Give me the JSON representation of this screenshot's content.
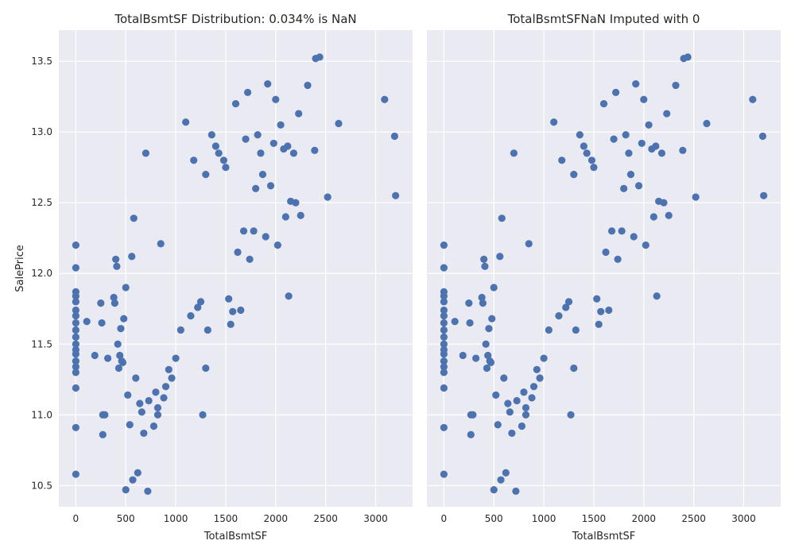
{
  "chart_data": [
    {
      "type": "scatter",
      "title": "TotalBsmtSF Distribution: 0.034% is NaN",
      "xlabel": "TotalBsmtSF",
      "ylabel": "SalePrice",
      "xlim": [
        -170,
        3370
      ],
      "ylim": [
        10.35,
        13.72
      ],
      "xticks": [
        0,
        500,
        1000,
        1500,
        2000,
        2500,
        3000
      ],
      "yticks": [
        10.5,
        11.0,
        11.5,
        12.0,
        12.5,
        13.0,
        13.5
      ],
      "ytick_labels": [
        "10.5",
        "11.0",
        "11.5",
        "12.0",
        "12.5",
        "13.0",
        "13.5"
      ],
      "grid": true,
      "background": "#eaeaf2",
      "marker_color": "#4c72b0"
    },
    {
      "type": "scatter",
      "title": "TotalBsmtSFNaN Imputed with 0",
      "xlabel": "TotalBsmtSF",
      "ylabel": "",
      "xlim": [
        -170,
        3370
      ],
      "ylim": [
        10.35,
        13.72
      ],
      "xticks": [
        0,
        500,
        1000,
        1500,
        2000,
        2500,
        3000
      ],
      "yticks": [
        10.5,
        11.0,
        11.5,
        12.0,
        12.5,
        13.0,
        13.5
      ],
      "ytick_labels": [],
      "grid": true,
      "background": "#eaeaf2",
      "marker_color": "#4c72b0"
    }
  ],
  "points": [
    [
      0,
      12.2
    ],
    [
      0,
      12.04
    ],
    [
      0,
      11.87
    ],
    [
      0,
      11.84
    ],
    [
      0,
      11.8
    ],
    [
      0,
      11.74
    ],
    [
      0,
      11.7
    ],
    [
      0,
      11.65
    ],
    [
      0,
      11.6
    ],
    [
      0,
      11.55
    ],
    [
      0,
      11.5
    ],
    [
      0,
      11.46
    ],
    [
      0,
      11.43
    ],
    [
      0,
      11.38
    ],
    [
      0,
      11.34
    ],
    [
      0,
      11.3
    ],
    [
      0,
      11.19
    ],
    [
      0,
      10.91
    ],
    [
      0,
      10.58
    ],
    [
      110,
      11.66
    ],
    [
      190,
      11.42
    ],
    [
      250,
      11.79
    ],
    [
      260,
      11.65
    ],
    [
      270,
      11.0
    ],
    [
      290,
      11.0
    ],
    [
      270,
      10.86
    ],
    [
      320,
      11.4
    ],
    [
      380,
      11.83
    ],
    [
      390,
      11.79
    ],
    [
      400,
      12.1
    ],
    [
      410,
      12.05
    ],
    [
      420,
      11.5
    ],
    [
      430,
      11.33
    ],
    [
      440,
      11.42
    ],
    [
      450,
      11.61
    ],
    [
      460,
      11.38
    ],
    [
      470,
      11.37
    ],
    [
      480,
      11.68
    ],
    [
      500,
      10.47
    ],
    [
      500,
      11.9
    ],
    [
      520,
      11.14
    ],
    [
      540,
      10.93
    ],
    [
      560,
      12.12
    ],
    [
      570,
      10.54
    ],
    [
      580,
      12.39
    ],
    [
      600,
      11.26
    ],
    [
      620,
      10.59
    ],
    [
      640,
      11.08
    ],
    [
      660,
      11.02
    ],
    [
      680,
      10.87
    ],
    [
      700,
      12.85
    ],
    [
      720,
      10.46
    ],
    [
      730,
      11.1
    ],
    [
      780,
      10.92
    ],
    [
      800,
      11.16
    ],
    [
      820,
      11.0
    ],
    [
      820,
      11.05
    ],
    [
      850,
      12.21
    ],
    [
      880,
      11.12
    ],
    [
      900,
      11.2
    ],
    [
      930,
      11.32
    ],
    [
      960,
      11.26
    ],
    [
      1000,
      11.4
    ],
    [
      1050,
      11.6
    ],
    [
      1100,
      13.07
    ],
    [
      1150,
      11.7
    ],
    [
      1180,
      12.8
    ],
    [
      1220,
      11.76
    ],
    [
      1250,
      11.8
    ],
    [
      1270,
      11.0
    ],
    [
      1300,
      12.7
    ],
    [
      1300,
      11.33
    ],
    [
      1320,
      11.6
    ],
    [
      1360,
      12.98
    ],
    [
      1400,
      12.9
    ],
    [
      1430,
      12.85
    ],
    [
      1480,
      12.8
    ],
    [
      1500,
      12.75
    ],
    [
      1530,
      11.82
    ],
    [
      1550,
      11.64
    ],
    [
      1570,
      11.73
    ],
    [
      1600,
      13.2
    ],
    [
      1620,
      12.15
    ],
    [
      1650,
      11.74
    ],
    [
      1680,
      12.3
    ],
    [
      1700,
      12.95
    ],
    [
      1720,
      13.28
    ],
    [
      1740,
      12.1
    ],
    [
      1780,
      12.3
    ],
    [
      1800,
      12.6
    ],
    [
      1820,
      12.98
    ],
    [
      1850,
      12.85
    ],
    [
      1870,
      12.7
    ],
    [
      1900,
      12.26
    ],
    [
      1920,
      13.34
    ],
    [
      1950,
      12.62
    ],
    [
      1980,
      12.92
    ],
    [
      2000,
      13.23
    ],
    [
      2020,
      12.2
    ],
    [
      2050,
      13.05
    ],
    [
      2080,
      12.88
    ],
    [
      2100,
      12.4
    ],
    [
      2120,
      12.9
    ],
    [
      2130,
      11.84
    ],
    [
      2150,
      12.51
    ],
    [
      2180,
      12.85
    ],
    [
      2200,
      12.5
    ],
    [
      2230,
      13.13
    ],
    [
      2250,
      12.41
    ],
    [
      2320,
      13.33
    ],
    [
      2390,
      12.87
    ],
    [
      2400,
      13.52
    ],
    [
      2440,
      13.53
    ],
    [
      2520,
      12.54
    ],
    [
      2630,
      13.06
    ],
    [
      3090,
      13.23
    ],
    [
      3190,
      12.97
    ],
    [
      3200,
      12.55
    ]
  ]
}
